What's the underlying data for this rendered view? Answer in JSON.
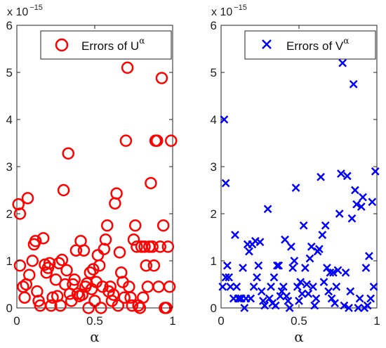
{
  "chart_data": [
    {
      "type": "scatter",
      "marker": "circle",
      "color": "#ff0000",
      "xlabel": "α",
      "xlim": [
        0,
        1
      ],
      "ylim": [
        0,
        6e-15
      ],
      "x_ticks": [
        "0",
        "0.5",
        "1"
      ],
      "y_ticks": [
        "0",
        "1",
        "2",
        "3",
        "4",
        "5",
        "6"
      ],
      "y_scale_base": "x 10",
      "y_scale_exponent": "−15",
      "legend": {
        "label": "Errors of U",
        "superscript": "α",
        "position": "top-right"
      },
      "series": [
        {
          "points": [
            [
              0.01,
              2.2
            ],
            [
              0.02,
              2.0
            ],
            [
              0.07,
              2.33
            ],
            [
              0.02,
              0.9
            ],
            [
              0.04,
              0.45
            ],
            [
              0.05,
              0.22
            ],
            [
              0.06,
              0.5
            ],
            [
              0.08,
              0.7
            ],
            [
              0.1,
              1.0
            ],
            [
              0.11,
              1.35
            ],
            [
              0.12,
              1.42
            ],
            [
              0.13,
              0.35
            ],
            [
              0.14,
              0.15
            ],
            [
              0.15,
              0.05
            ],
            [
              0.17,
              1.48
            ],
            [
              0.18,
              0.92
            ],
            [
              0.19,
              0.75
            ],
            [
              0.2,
              0.85
            ],
            [
              0.21,
              0.95
            ],
            [
              0.22,
              0.05
            ],
            [
              0.23,
              0.22
            ],
            [
              0.25,
              0.6
            ],
            [
              0.26,
              0.25
            ],
            [
              0.27,
              0.95
            ],
            [
              0.28,
              0.05
            ],
            [
              0.29,
              1.02
            ],
            [
              0.3,
              2.5
            ],
            [
              0.31,
              0.5
            ],
            [
              0.32,
              0.8
            ],
            [
              0.33,
              3.28
            ],
            [
              0.34,
              0.3
            ],
            [
              0.35,
              0.15
            ],
            [
              0.36,
              0.5
            ],
            [
              0.37,
              0.6
            ],
            [
              0.38,
              1.22
            ],
            [
              0.39,
              0.3
            ],
            [
              0.4,
              0.25
            ],
            [
              0.41,
              1.42
            ],
            [
              0.42,
              0.28
            ],
            [
              0.43,
              1.22
            ],
            [
              0.44,
              0.45
            ],
            [
              0.45,
              0.52
            ],
            [
              0.46,
              0.0
            ],
            [
              0.47,
              0.75
            ],
            [
              0.48,
              0.4
            ],
            [
              0.49,
              0.82
            ],
            [
              0.5,
              0.15
            ],
            [
              0.51,
              0.55
            ],
            [
              0.52,
              1.12
            ],
            [
              0.53,
              0.9
            ],
            [
              0.54,
              0.0
            ],
            [
              0.55,
              0.45
            ],
            [
              0.56,
              1.25
            ],
            [
              0.57,
              1.45
            ],
            [
              0.58,
              1.75
            ],
            [
              0.59,
              0.35
            ],
            [
              0.6,
              0.45
            ],
            [
              0.61,
              0.15
            ],
            [
              0.62,
              0.28
            ],
            [
              0.63,
              2.22
            ],
            [
              0.64,
              2.43
            ],
            [
              0.65,
              0.05
            ],
            [
              0.66,
              1.18
            ],
            [
              0.67,
              0.75
            ],
            [
              0.68,
              0.55
            ],
            [
              0.69,
              0.22
            ],
            [
              0.7,
              3.55
            ],
            [
              0.71,
              5.1
            ],
            [
              0.72,
              0.45
            ],
            [
              0.73,
              0.22
            ],
            [
              0.74,
              0.05
            ],
            [
              0.75,
              1.45
            ],
            [
              0.76,
              1.75
            ],
            [
              0.77,
              1.3
            ],
            [
              0.78,
              0.05
            ],
            [
              0.79,
              0.0
            ],
            [
              0.8,
              1.3
            ],
            [
              0.81,
              0.22
            ],
            [
              0.82,
              1.3
            ],
            [
              0.83,
              0.9
            ],
            [
              0.84,
              0.45
            ],
            [
              0.85,
              1.3
            ],
            [
              0.86,
              2.65
            ],
            [
              0.87,
              1.3
            ],
            [
              0.88,
              0.9
            ],
            [
              0.89,
              3.55
            ],
            [
              0.9,
              3.55
            ],
            [
              0.91,
              0.45
            ],
            [
              0.92,
              1.3
            ],
            [
              0.93,
              4.88
            ],
            [
              0.94,
              1.75
            ],
            [
              0.95,
              0.0
            ],
            [
              0.96,
              0.0
            ],
            [
              0.97,
              1.3
            ],
            [
              0.98,
              0.45
            ],
            [
              0.99,
              3.55
            ]
          ]
        }
      ]
    },
    {
      "type": "scatter",
      "marker": "x",
      "color": "#0000ff",
      "xlabel": "α",
      "xlim": [
        0,
        1
      ],
      "ylim": [
        0,
        6e-15
      ],
      "x_ticks": [
        "0",
        "0.5",
        "1"
      ],
      "y_ticks": [
        "0",
        "1",
        "2",
        "3",
        "4",
        "5",
        "6"
      ],
      "y_scale_base": "x 10",
      "y_scale_exponent": "−15",
      "legend": {
        "label": "Errors of V",
        "superscript": "α",
        "position": "top-right"
      },
      "series": [
        {
          "points": [
            [
              0.02,
              4.0
            ],
            [
              0.03,
              2.65
            ],
            [
              0.01,
              0.45
            ],
            [
              0.03,
              0.65
            ],
            [
              0.04,
              0.9
            ],
            [
              0.05,
              0.65
            ],
            [
              0.06,
              0.45
            ],
            [
              0.08,
              0.2
            ],
            [
              0.09,
              1.55
            ],
            [
              0.1,
              0.45
            ],
            [
              0.11,
              0.2
            ],
            [
              0.12,
              0.2
            ],
            [
              0.13,
              0.2
            ],
            [
              0.14,
              0.85
            ],
            [
              0.15,
              0.0
            ],
            [
              0.16,
              0.2
            ],
            [
              0.17,
              1.35
            ],
            [
              0.18,
              1.2
            ],
            [
              0.19,
              0.2
            ],
            [
              0.2,
              1.35
            ],
            [
              0.21,
              0.45
            ],
            [
              0.22,
              1.42
            ],
            [
              0.23,
              0.65
            ],
            [
              0.24,
              0.9
            ],
            [
              0.25,
              1.4
            ],
            [
              0.26,
              0.35
            ],
            [
              0.27,
              0.15
            ],
            [
              0.28,
              0.05
            ],
            [
              0.3,
              2.1
            ],
            [
              0.31,
              0.2
            ],
            [
              0.32,
              0.45
            ],
            [
              0.33,
              0.1
            ],
            [
              0.34,
              0.65
            ],
            [
              0.35,
              0.05
            ],
            [
              0.36,
              0.9
            ],
            [
              0.37,
              0.9
            ],
            [
              0.38,
              0.25
            ],
            [
              0.39,
              0.35
            ],
            [
              0.4,
              0.45
            ],
            [
              0.41,
              1.45
            ],
            [
              0.42,
              0.25
            ],
            [
              0.43,
              0.15
            ],
            [
              0.44,
              0.0
            ],
            [
              0.45,
              1.3
            ],
            [
              0.46,
              0.85
            ],
            [
              0.47,
              1.0
            ],
            [
              0.48,
              2.55
            ],
            [
              0.49,
              0.45
            ],
            [
              0.5,
              0.15
            ],
            [
              0.51,
              0.55
            ],
            [
              0.52,
              0.3
            ],
            [
              0.53,
              1.75
            ],
            [
              0.54,
              0.85
            ],
            [
              0.55,
              0.5
            ],
            [
              0.56,
              0.3
            ],
            [
              0.57,
              1.05
            ],
            [
              0.58,
              1.3
            ],
            [
              0.59,
              0.45
            ],
            [
              0.6,
              0.05
            ],
            [
              0.61,
              0.2
            ],
            [
              0.62,
              1.2
            ],
            [
              0.63,
              1.25
            ],
            [
              0.64,
              2.78
            ],
            [
              0.65,
              1.55
            ],
            [
              0.66,
              0.55
            ],
            [
              0.67,
              1.75
            ],
            [
              0.68,
              0.85
            ],
            [
              0.69,
              0.35
            ],
            [
              0.7,
              0.75
            ],
            [
              0.71,
              0.2
            ],
            [
              0.72,
              0.75
            ],
            [
              0.73,
              0.1
            ],
            [
              0.74,
              0.45
            ],
            [
              0.75,
              0.8
            ],
            [
              0.76,
              2.0
            ],
            [
              0.77,
              2.85
            ],
            [
              0.78,
              5.2
            ],
            [
              0.79,
              0.05
            ],
            [
              0.8,
              0.75
            ],
            [
              0.81,
              2.8
            ],
            [
              0.82,
              0.0
            ],
            [
              0.83,
              0.35
            ],
            [
              0.84,
              1.9
            ],
            [
              0.85,
              4.75
            ],
            [
              0.86,
              2.5
            ],
            [
              0.87,
              2.2
            ],
            [
              0.88,
              0.0
            ],
            [
              0.89,
              0.2
            ],
            [
              0.9,
              2.15
            ],
            [
              0.91,
              2.35
            ],
            [
              0.92,
              0.0
            ],
            [
              0.93,
              0.85
            ],
            [
              0.94,
              0.05
            ],
            [
              0.95,
              1.1
            ],
            [
              0.96,
              0.2
            ],
            [
              0.97,
              2.25
            ],
            [
              0.98,
              0.45
            ],
            [
              0.99,
              2.9
            ]
          ]
        }
      ]
    }
  ]
}
